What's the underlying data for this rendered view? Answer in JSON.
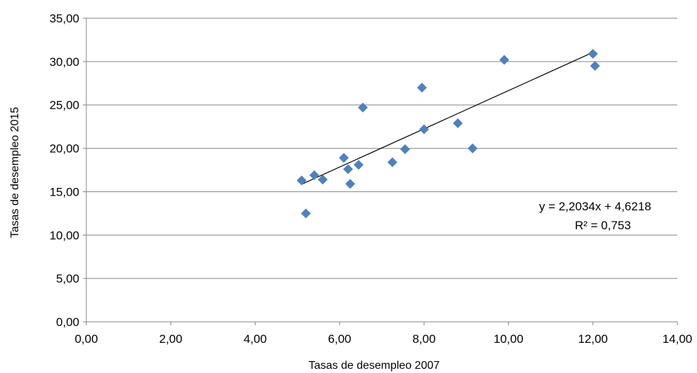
{
  "chart_data": {
    "type": "scatter",
    "title": "",
    "xlabel": "Tasas de desempleo  2007",
    "ylabel": "Tasas de desempleo  2015",
    "xlim": [
      0,
      14
    ],
    "ylim": [
      0,
      35
    ],
    "x_ticks": [
      0,
      2,
      4,
      6,
      8,
      10,
      12,
      14
    ],
    "y_ticks": [
      0,
      5,
      10,
      15,
      20,
      25,
      30,
      35
    ],
    "x_tick_labels": [
      "0,00",
      "2,00",
      "4,00",
      "6,00",
      "8,00",
      "10,00",
      "12,00",
      "14,00"
    ],
    "y_tick_labels": [
      "0,00",
      "5,00",
      "10,00",
      "15,00",
      "20,00",
      "25,00",
      "30,00",
      "35,00"
    ],
    "grid": "horizontal",
    "legend": "none",
    "marker": "diamond",
    "marker_color": "#4f81bd",
    "series": [
      {
        "points": [
          {
            "x": 5.1,
            "y": 16.3
          },
          {
            "x": 5.2,
            "y": 12.5
          },
          {
            "x": 5.4,
            "y": 16.9
          },
          {
            "x": 5.6,
            "y": 16.4
          },
          {
            "x": 6.1,
            "y": 18.9
          },
          {
            "x": 6.2,
            "y": 17.6
          },
          {
            "x": 6.25,
            "y": 15.9
          },
          {
            "x": 6.45,
            "y": 18.1
          },
          {
            "x": 6.55,
            "y": 24.7
          },
          {
            "x": 7.25,
            "y": 18.4
          },
          {
            "x": 7.55,
            "y": 19.9
          },
          {
            "x": 7.95,
            "y": 27.0
          },
          {
            "x": 8.0,
            "y": 22.2
          },
          {
            "x": 8.8,
            "y": 22.9
          },
          {
            "x": 9.15,
            "y": 20.0
          },
          {
            "x": 9.9,
            "y": 30.2
          },
          {
            "x": 12.0,
            "y": 30.9
          },
          {
            "x": 12.05,
            "y": 29.5
          }
        ]
      }
    ],
    "trendline": {
      "slope": 2.2034,
      "intercept": 4.6218,
      "x_start": 5.1,
      "x_end": 12.0,
      "color": "#000000"
    },
    "annotations": {
      "equation": "y = 2,2034x + 4,6218",
      "r_squared": "R² = 0,753"
    }
  }
}
